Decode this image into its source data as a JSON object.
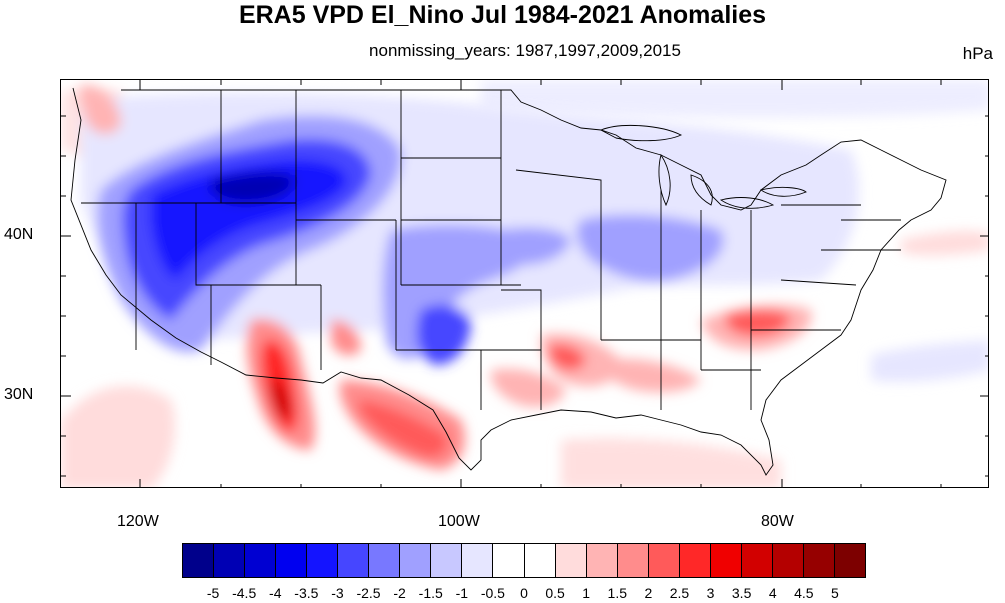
{
  "title": "ERA5 VPD El_Nino Jul 1984-2021 Anomalies",
  "subtitle": "nonmissing_years: 1987,1997,2009,2015",
  "units": "hPa",
  "lat_labels": [
    "40N",
    "30N"
  ],
  "lon_labels": [
    "120W",
    "100W",
    "80W"
  ],
  "colorbar": {
    "colors": [
      "#00008b",
      "#0000b4",
      "#0000d2",
      "#0000f0",
      "#1414ff",
      "#4646ff",
      "#7878ff",
      "#a0a0ff",
      "#c8c8ff",
      "#e6e6ff",
      "#ffffff",
      "#ffffff",
      "#ffdcdc",
      "#ffb4b4",
      "#ff8c8c",
      "#ff5a5a",
      "#ff2828",
      "#f00000",
      "#d20000",
      "#b40000",
      "#960000",
      "#7d0000"
    ],
    "labels": [
      "-5",
      "-4.5",
      "-4",
      "-3.5",
      "-3",
      "-2.5",
      "-2",
      "-1.5",
      "-1",
      "-0.5",
      "0",
      "0.5",
      "1",
      "1.5",
      "2",
      "2.5",
      "3",
      "3.5",
      "4",
      "4.5",
      "5"
    ]
  }
}
